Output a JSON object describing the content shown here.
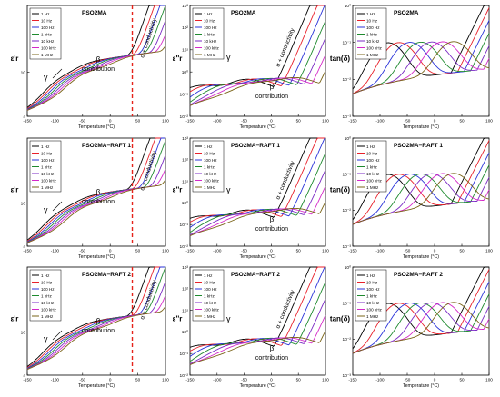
{
  "colors": {
    "1 Hz": "#000000",
    "10 Hz": "#e8202a",
    "100 Hz": "#2a33d9",
    "1 kHz": "#1e8a2e",
    "10 kHz": "#7a2ac4",
    "100 kHz": "#d428c8",
    "1 MHz": "#7a6418",
    "vline": "#e5231b"
  },
  "x_ticks": [
    "-150",
    "-100",
    "-50",
    "0",
    "50",
    "100"
  ],
  "chart_data": [
    {
      "type": "line",
      "title": "PSO2MA",
      "title_sub": "2",
      "xlabel": "Temperature (°C)",
      "ylabel": "ε'r",
      "ylog": false,
      "ylim": [
        4,
        40
      ],
      "yticks": [
        "4",
        "10"
      ],
      "xlim": [
        -150,
        100
      ],
      "legend": [
        "1 Hz",
        "10 Hz",
        "100 Hz",
        "1 kHz",
        "10 kHz",
        "100 kHz",
        "1 MHz"
      ],
      "legend_pos": "top-left",
      "annotations": [
        "γ",
        "β",
        "contribution",
        "α + conductivity"
      ],
      "vline": 40
    },
    {
      "type": "line",
      "title": "PSO2MA",
      "title_sub": "2",
      "xlabel": "Temperature (°C)",
      "ylabel": "ε''r",
      "ylog": true,
      "ylim": [
        0.01,
        1000
      ],
      "yticks": [
        "10⁻²",
        "10⁻¹",
        "10⁰",
        "10¹",
        "10²",
        "10³"
      ],
      "xlim": [
        -150,
        100
      ],
      "legend": [
        "1 Hz",
        "10 Hz",
        "100 Hz",
        "1 kHz",
        "10 kHz",
        "100 kHz",
        "1 MHz"
      ],
      "legend_pos": "top-left",
      "annotations": [
        "γ",
        "β",
        "contribution",
        "α + conductivity"
      ]
    },
    {
      "type": "line",
      "title": "PSO2MA",
      "title_sub": "2",
      "xlabel": "Temperature (°C)",
      "ylabel": "tan(δ)",
      "ylog": true,
      "ylim": [
        0.001,
        1
      ],
      "yticks": [
        "10⁻³",
        "10⁻²",
        "10⁻¹",
        "10⁰"
      ],
      "xlim": [
        -150,
        100
      ],
      "legend": [
        "1 Hz",
        "10 Hz",
        "100 Hz",
        "1 kHz",
        "10 kHz",
        "100 kHz",
        "1 MHz"
      ],
      "legend_pos": "top-left"
    },
    {
      "type": "line",
      "title": "PSO2MA−RAFT 1",
      "title_sub": "2",
      "xlabel": "Temperature (°C)",
      "ylabel": "ε'r",
      "ylog": false,
      "ylim": [
        4,
        40
      ],
      "yticks": [
        "4",
        "10"
      ],
      "xlim": [
        -150,
        100
      ],
      "legend": [
        "1 Hz",
        "10 Hz",
        "100 Hz",
        "1 kHz",
        "10 kHz",
        "100 kHz",
        "1 MHz"
      ],
      "legend_pos": "top-left",
      "annotations": [
        "γ",
        "β",
        "contribution",
        "α + conductivity"
      ],
      "vline": 40
    },
    {
      "type": "line",
      "title": "PSO2MA−RAFT 1",
      "title_sub": "2",
      "xlabel": "Temperature (°C)",
      "ylabel": "ε''r",
      "ylog": true,
      "ylim": [
        0.01,
        1000
      ],
      "yticks": [
        "10⁻²",
        "10⁻¹",
        "10⁰",
        "10¹",
        "10²",
        "10³"
      ],
      "xlim": [
        -150,
        100
      ],
      "legend": [
        "1 Hz",
        "10 Hz",
        "100 Hz",
        "1 kHz",
        "10 kHz",
        "100 kHz",
        "1 MHz"
      ],
      "legend_pos": "top-left",
      "annotations": [
        "γ",
        "β",
        "contribution",
        "α + conductivity"
      ]
    },
    {
      "type": "line",
      "title": "PSO2MA−RAFT 1",
      "title_sub": "2",
      "xlabel": "Temperature (°C)",
      "ylabel": "tan(δ)",
      "ylog": true,
      "ylim": [
        0.001,
        1
      ],
      "yticks": [
        "10⁻³",
        "10⁻²",
        "10⁻¹",
        "10⁰"
      ],
      "xlim": [
        -150,
        100
      ],
      "legend": [
        "1 Hz",
        "10 Hz",
        "100 Hz",
        "1 kHz",
        "10 kHz",
        "100 kHz",
        "1 MHz"
      ],
      "legend_pos": "top-left"
    },
    {
      "type": "line",
      "title": "PSO2MA−RAFT 2",
      "title_sub": "2",
      "xlabel": "Temperature (°C)",
      "ylabel": "ε'r",
      "ylog": false,
      "ylim": [
        4,
        40
      ],
      "yticks": [
        "4",
        "10"
      ],
      "xlim": [
        -150,
        100
      ],
      "legend": [
        "1 Hz",
        "10 Hz",
        "100 Hz",
        "1 kHz",
        "10 kHz",
        "100 kHz",
        "1 MHz"
      ],
      "legend_pos": "top-left",
      "annotations": [
        "γ",
        "β",
        "contribution",
        "α + conductivity"
      ],
      "vline": 40
    },
    {
      "type": "line",
      "title": "PSO2MA−RAFT 2",
      "title_sub": "2",
      "xlabel": "Temperature (°C)",
      "ylabel": "ε''r",
      "ylog": true,
      "ylim": [
        0.01,
        1000
      ],
      "yticks": [
        "10⁻²",
        "10⁻¹",
        "10⁰",
        "10¹",
        "10²",
        "10³"
      ],
      "xlim": [
        -150,
        100
      ],
      "legend": [
        "1 Hz",
        "10 Hz",
        "100 Hz",
        "1 kHz",
        "10 kHz",
        "100 kHz",
        "1 MHz"
      ],
      "legend_pos": "top-left",
      "annotations": [
        "γ",
        "β",
        "contribution",
        "α + conductivity"
      ]
    },
    {
      "type": "line",
      "title": "PSO2MA−RAFT 2",
      "title_sub": "2",
      "xlabel": "Temperature (°C)",
      "ylabel": "tan(δ)",
      "ylog": true,
      "ylim": [
        0.001,
        1
      ],
      "yticks": [
        "10⁻³",
        "10⁻²",
        "10⁻¹",
        "10⁰"
      ],
      "xlim": [
        -150,
        100
      ],
      "legend": [
        "1 Hz",
        "10 Hz",
        "100 Hz",
        "1 kHz",
        "10 kHz",
        "100 kHz",
        "1 MHz"
      ],
      "legend_pos": "top-left"
    }
  ]
}
